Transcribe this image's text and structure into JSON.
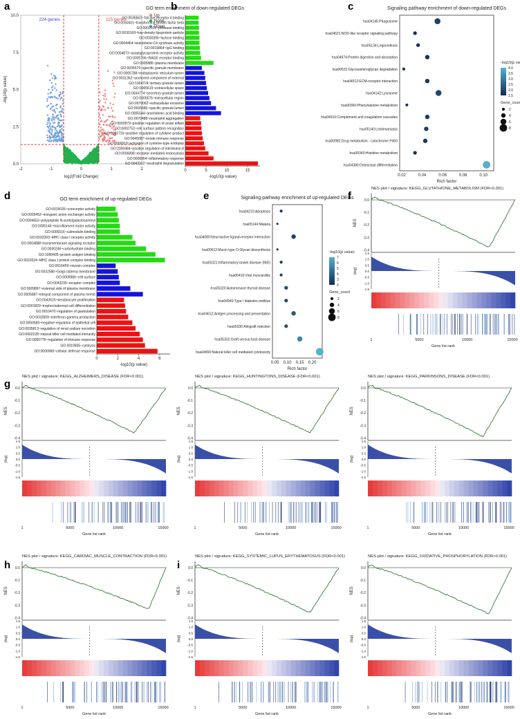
{
  "colors": {
    "up": "#f08080",
    "none": "#22b14c",
    "down": "#6f9fdc",
    "go_green": "#22dd11",
    "go_blue": "#1414dd",
    "go_red": "#ee1111",
    "gsea_line": "#2e7d32",
    "gsea_bar": "#3a50a8"
  },
  "panel_labels": [
    "a",
    "b",
    "c",
    "d",
    "e",
    "f",
    "g",
    "h",
    "i"
  ],
  "a": {
    "type": "scatter",
    "xlabel": "log2(Fold Change)",
    "ylabel": "-log10(p value)",
    "xlim": [
      -2,
      2
    ],
    "ylim": [
      0,
      10
    ],
    "xticks": [
      "-2",
      "-1",
      "0",
      "1",
      "2"
    ],
    "yticks": [
      "0.0",
      "2.5",
      "5.0",
      "7.5",
      "10.0"
    ],
    "count_down": "224 genes",
    "count_up": "115 genes",
    "legend": [
      "Up",
      "None",
      "Down"
    ],
    "legend_placement": "top-right",
    "vlines": [
      -0.58,
      0.58
    ],
    "hline": 1.3
  },
  "b": {
    "type": "bar",
    "title": "GO term enrichment of down-regulated DEGs",
    "xlabel": "-log10(p value)",
    "xlim": [
      0,
      18
    ],
    "xticks": [
      "0",
      "5",
      "10",
      "15"
    ],
    "categories": [
      "GO:0035662~Toll-like receptor 4 binding",
      "GO:0050431~transforming growth factor beta",
      "GO:0002020~protease binding",
      "GO:0030169~low-density lipoprotein particle",
      "GO:0030395~lactose binding",
      "GO:0004464~leukotriene-C4 synthase activity",
      "GO:0019864~IgG binding",
      "GO:0004873~asialoglycoprotein receptor activity",
      "GO:0005766~RAGE receptor binding",
      "GO:0005886~plasma membrane",
      "GO:0035579~specific granule membrane",
      "GO:0005788~endoplasmic reticulum lumen",
      "GO:0031362~anchored component of external",
      "GO:1904724~tertiary granule lumen",
      "GO:0005615~extracellular space",
      "GO:0034774~secretory granule lumen",
      "GO:0005576~extracellular region",
      "GO:0070062~extracellular exosome",
      "GO:0035580~specific granule lumen",
      "GO:0005544~arachidonic acid binding",
      "GO:0070488~neutrophil aggregation",
      "GO:0002879~positive regulation of acute inflam",
      "GO:0002752~cell surface pattern recognition",
      "GO:0002720~positive regulation of cytokine product",
      "GO:0045087~innate immune response",
      "GO:0006919~activation of cysteine-type endopep",
      "GO:2000484~positive regulation of interleukin-8",
      "GO:0006898~receptor-mediated endocytosis",
      "GO:0006954~inflammatory response",
      "GO:0043312~neutrophil degranulation"
    ],
    "values": [
      3.2,
      3.2,
      3.3,
      3.3,
      3.4,
      3.4,
      3.5,
      3.6,
      3.8,
      6.8,
      4.0,
      4.6,
      4.8,
      5.0,
      5.2,
      5.5,
      5.8,
      6.2,
      7.4,
      8.6,
      3.6,
      3.8,
      3.9,
      4.0,
      4.2,
      4.5,
      4.8,
      5.6,
      6.8,
      17.5
    ],
    "groups": [
      "green",
      "green",
      "green",
      "green",
      "green",
      "green",
      "green",
      "green",
      "green",
      "green",
      "blue",
      "blue",
      "blue",
      "blue",
      "blue",
      "blue",
      "blue",
      "blue",
      "blue",
      "blue",
      "red",
      "red",
      "red",
      "red",
      "red",
      "red",
      "red",
      "red",
      "red",
      "red"
    ]
  },
  "c": {
    "type": "scatter",
    "title": "Signaling pathway enrichment of down-regulated DEGs",
    "xlabel": "Rich factor",
    "xlim": [
      0.018,
      0.11
    ],
    "xticks": [
      "0.02",
      "0.04",
      "0.06",
      "0.08",
      "0.10"
    ],
    "categories": [
      "hsa04145:Phagosome",
      "hsa04621:NOD-like receptor signaling pathway",
      "hsa05134:Legionellosis",
      "hsa04974:Protein digestion and absorption",
      "hsa00531:Glycosaminoglycan degradation",
      "hsa04512:ECM-receptor interaction",
      "hsa04142:Lysosome",
      "hsa00360:Phenylalanine metabolism",
      "hsa04610:Complement and coagulation cascades",
      "hsa05140:Leishmaniasis",
      "hsa00982:Drug metabolism - cytochrome P450",
      "hsa00340:Histidine metabolism",
      "hsa04380:Osteoclast differentiation"
    ],
    "x": [
      0.055,
      0.033,
      0.036,
      0.045,
      0.022,
      0.045,
      0.056,
      0.025,
      0.045,
      0.044,
      0.043,
      0.033,
      0.103
    ],
    "size": [
      6,
      3,
      3,
      4,
      2,
      4,
      6,
      2,
      4,
      4,
      4,
      3,
      8
    ],
    "pval": [
      2.0,
      1.6,
      1.6,
      1.7,
      1.5,
      1.8,
      2.1,
      1.5,
      1.8,
      1.9,
      1.8,
      1.6,
      4.3
    ],
    "color_legend_title": "-log10(p value)",
    "color_ticks": [
      "1.5",
      "2.0",
      "2.5",
      "3.0",
      "3.5",
      "4.0"
    ],
    "size_legend_title": "Gene_count",
    "size_ticks": [
      "2",
      "4",
      "6",
      "8"
    ]
  },
  "d": {
    "type": "bar",
    "title": "GO term enrichment of up-regulated DEGs",
    "xlabel": "-log10(p value)",
    "xlim": [
      0,
      7
    ],
    "xticks": [
      "0",
      "2",
      "4",
      "6"
    ],
    "categories": [
      "GO:0015026~coreceptor activity",
      "GO:0005452~inorganic anion exchanger activity",
      "GO:0004653~polypeptide N-acetylgalactosaminyl",
      "GO:0000146~microfilament motor activity",
      "GO:0005516~calmodulin binding",
      "GO:0032393~MHC class I receptor activity",
      "GO:0004888~transmembrane signaling receptor",
      "GO:0030246~carbohydrate binding",
      "GO:1990405~protein antigen binding",
      "GO:0023024~MHC class I protein complex binding",
      "GO:0016459~myosin complex",
      "GO:0032580~Golgi cisterna membrane",
      "GO:0009986~cell surface",
      "GO:0043235~receptor complex",
      "GO:0009897~external side of plasma membrane",
      "GO:0005887~integral component of plasma memb",
      "GO:0043616~keratinocyte proliferation",
      "GO:0001829~trophectodermal cell differentiation",
      "GO:0010470~regulation of gastrulation",
      "GO:0032609~interferon-gamma production",
      "GO:0050680~negative regulation of epithelial cell",
      "GO:0035813~regulation of renal sodium excretion",
      "GO:0002228~natural killer cell mediated immunity",
      "GO:0050776~regulation of immune response",
      "GO:0019835~cytolysis",
      "GO:0006968~cellular defense response"
    ],
    "values": [
      1.8,
      2.0,
      2.1,
      2.2,
      2.2,
      3.4,
      3.7,
      4.7,
      5.6,
      6.5,
      1.8,
      2.0,
      2.1,
      2.2,
      3.2,
      4.4,
      2.6,
      2.7,
      2.8,
      3.0,
      3.4,
      3.7,
      4.1,
      4.4,
      4.6,
      5.8
    ],
    "groups": [
      "green",
      "green",
      "green",
      "green",
      "green",
      "green",
      "green",
      "green",
      "green",
      "green",
      "blue",
      "blue",
      "blue",
      "blue",
      "blue",
      "blue",
      "red",
      "red",
      "red",
      "red",
      "red",
      "red",
      "red",
      "red",
      "red",
      "red"
    ]
  },
  "e": {
    "type": "scatter",
    "title": "Signaling pathway enrichment of up-regulated DEGs",
    "xlabel": "Rich factor",
    "xlim": [
      0.04,
      0.24
    ],
    "xticks": [
      "0.05",
      "0.10",
      "0.15",
      "0.20"
    ],
    "categories": [
      "hsa04210:Apoptosis",
      "hsa05144:Malaria",
      "hsa04080:Neuroactive ligand-receptor interaction",
      "hsa00512:Mucin type O-Glycan biosynthesis",
      "hsa05321:Inflammatory bowel disease (IBD)",
      "hsa05416:Viral myocarditis",
      "hsa05320:Autoimmune thyroid disease",
      "hsa04940:Type I diabetes mellitus",
      "hsa04612:Antigen processing and presentation",
      "hsa05330:Allograft rejection",
      "hsa05332:Graft-versus-host disease",
      "hsa04650:Natural killer cell mediated cytotoxicity"
    ],
    "x": [
      0.075,
      0.06,
      0.125,
      0.06,
      0.075,
      0.075,
      0.095,
      0.095,
      0.125,
      0.095,
      0.15,
      0.23
    ],
    "size": [
      2,
      1,
      4,
      1,
      2,
      2,
      3,
      3,
      4,
      3,
      5,
      8
    ],
    "pval": [
      2.0,
      1.4,
      2.2,
      1.4,
      2.0,
      2.2,
      2.6,
      2.8,
      3.2,
      3.0,
      5.0,
      6.8
    ],
    "color_legend_title": "-log10(p value)",
    "color_ticks": [
      "2",
      "3",
      "4",
      "5",
      "6",
      "7"
    ],
    "size_legend_title": "Gene_count",
    "size_ticks": [
      "2",
      "4",
      "6",
      "8"
    ]
  },
  "gsea_common": {
    "ylabel_top": "NES",
    "ylabel_mid": "(log)",
    "xlabel": "Gene list rank",
    "xticks": [
      "1",
      "5000",
      "10000",
      "15000"
    ],
    "nes_ticks": [
      "0.0",
      "-0.1",
      "-0.2",
      "-0.3",
      "-0.4"
    ],
    "mid_ticks": [
      "1.5",
      "1.0",
      "0.5",
      "0.0",
      "-0.5",
      "-1.0",
      "-1.5"
    ]
  },
  "gsea": [
    {
      "panel": "f",
      "title": "NES plot / signature: KEGG_GLUTATHIONE_METABOLISM (FDR<0.001)",
      "min_nes": -0.38,
      "min_rank": 0.82,
      "seed": 3
    },
    {
      "panel": "g",
      "title": "NES plot / signature: KEGG_ALZHEIMERS_DISEASE (FDR<0.001)",
      "min_nes": -0.36,
      "min_rank": 0.78,
      "seed": 7
    },
    {
      "panel": "",
      "title": "NES plot / signature: KEGG_HUNTINGTONS_DISEASE (FDR<0.001)",
      "min_nes": -0.36,
      "min_rank": 0.8,
      "seed": 11
    },
    {
      "panel": "",
      "title": "NES plot / signature: KEGG_PARKINSONS_DISEASE (FDR<0.001)",
      "min_nes": -0.39,
      "min_rank": 0.8,
      "seed": 13
    },
    {
      "panel": "h",
      "title": "NES plot / signature: KEGG_CARDIAC_MUSCLE_CONTRACTION (FDR<0.001)",
      "min_nes": -0.33,
      "min_rank": 0.88,
      "seed": 17
    },
    {
      "panel": "i",
      "title": "NES plot / signature: KEGG_SYSTEMIC_LUPUS_ERYTHEMATOSUS (FDR<0.001)",
      "min_nes": -0.36,
      "min_rank": 0.8,
      "seed": 19
    },
    {
      "panel": "",
      "title": "NES plot / signature: KEGG_OXIDATIVE_PHOSPHORYLATION (FDR<0.001)",
      "min_nes": -0.37,
      "min_rank": 0.84,
      "seed": 23
    }
  ]
}
